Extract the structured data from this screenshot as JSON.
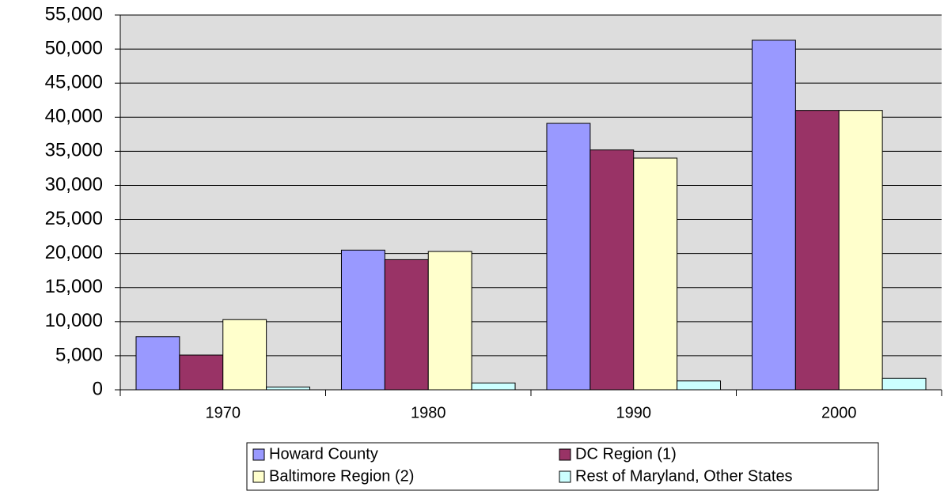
{
  "chart_data": {
    "type": "bar",
    "categories": [
      "1970",
      "1980",
      "1990",
      "2000"
    ],
    "series": [
      {
        "name": "Howard County",
        "color": "#9999ff",
        "values": [
          7800,
          20500,
          39100,
          51300
        ]
      },
      {
        "name": "DC Region (1)",
        "color": "#993366",
        "values": [
          5100,
          19100,
          35200,
          41000
        ]
      },
      {
        "name": "Baltimore Region (2)",
        "color": "#ffffcc",
        "values": [
          10300,
          20300,
          34000,
          41000
        ]
      },
      {
        "name": "Rest of Maryland, Other States",
        "color": "#ccffff",
        "values": [
          400,
          1000,
          1300,
          1700
        ]
      }
    ],
    "ylim": [
      0,
      55000
    ],
    "yticks": [
      0,
      {
        "value": 5000,
        "label": "5,000"
      },
      {
        "value": 10000,
        "label": "10,000"
      },
      {
        "value": 15000,
        "label": "15,000"
      },
      {
        "value": 20000,
        "label": "20,000"
      },
      {
        "value": 25000,
        "label": "25,000"
      },
      {
        "value": 30000,
        "label": "30,000"
      },
      {
        "value": 35000,
        "label": "35,000"
      },
      {
        "value": 40000,
        "label": "40,000"
      },
      {
        "value": 45000,
        "label": "45,000"
      },
      {
        "value": 50000,
        "label": "50,000"
      },
      {
        "value": 55000,
        "label": "55,000"
      }
    ],
    "grid": true,
    "legend": "bottom"
  }
}
